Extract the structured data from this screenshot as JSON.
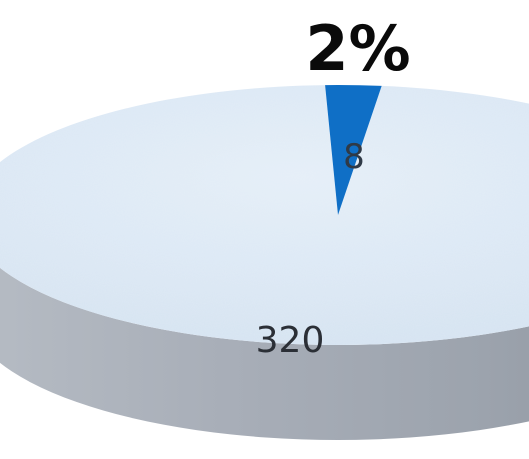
{
  "chart_data": {
    "type": "pie",
    "style": "3d",
    "slices": [
      {
        "value": 320,
        "label": "320",
        "color": "#d9e6f4"
      },
      {
        "value": 8,
        "label": "8",
        "color": "#0f6fc6"
      }
    ],
    "annotation": "2%",
    "side_color": "#9aa2ad"
  }
}
